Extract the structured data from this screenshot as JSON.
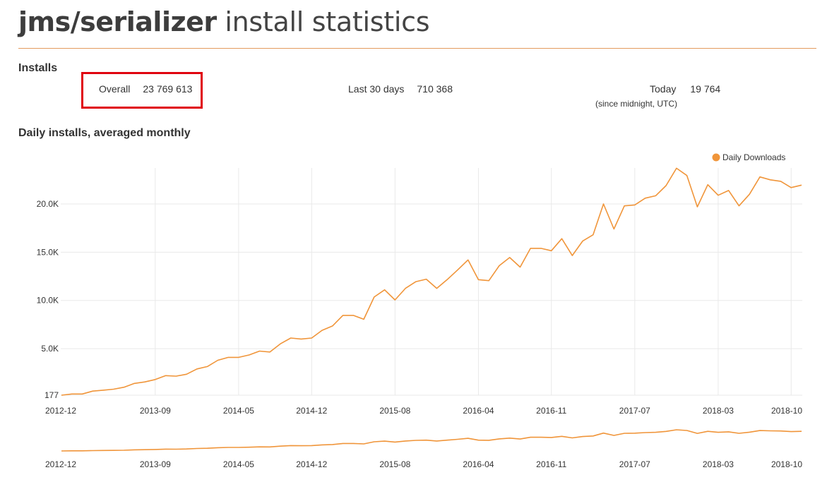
{
  "header": {
    "package": "jms/serializer",
    "title_rest": " install statistics"
  },
  "installs": {
    "heading": "Installs",
    "overall": {
      "label": "Overall",
      "value": "23 769 613"
    },
    "last30": {
      "label": "Last 30 days",
      "value": "710 368"
    },
    "today": {
      "label": "Today",
      "value": "19 764",
      "note": "(since midnight, UTC)"
    }
  },
  "chart_section": {
    "heading": "Daily installs, averaged monthly"
  },
  "colors": {
    "series": "#f0953a",
    "highlight_box": "#e0040f",
    "rule": "#e39a5e"
  },
  "chart_data": {
    "type": "line",
    "legend": "top-right",
    "grid": true,
    "ylim": [
      177,
      24500
    ],
    "y_ticks": [
      177,
      5000,
      10000,
      15000,
      20000
    ],
    "y_tick_labels": [
      "177",
      "5.0K",
      "10.0K",
      "15.0K",
      "20.0K"
    ],
    "x_tick_labels": [
      "2012-12",
      "2013-09",
      "2014-05",
      "2014-12",
      "2015-08",
      "2016-04",
      "2016-11",
      "2017-07",
      "2018-03",
      "2018-10"
    ],
    "x_tick_indices": [
      0,
      9,
      17,
      24,
      32,
      40,
      47,
      55,
      63,
      70
    ],
    "series": [
      {
        "name": "Daily Downloads",
        "values": [
          177,
          300,
          300,
          600,
          700,
          800,
          1000,
          1400,
          1550,
          1800,
          2200,
          2150,
          2350,
          2900,
          3150,
          3800,
          4100,
          4100,
          4350,
          4750,
          4650,
          5500,
          6100,
          6000,
          6100,
          6900,
          7350,
          8450,
          8450,
          8050,
          10350,
          11100,
          10050,
          11250,
          11950,
          12200,
          11250,
          12150,
          13150,
          14200,
          12150,
          12050,
          13600,
          14450,
          13450,
          15400,
          15400,
          15150,
          16400,
          14650,
          16150,
          16800,
          20000,
          17400,
          19800,
          19900,
          20600,
          20850,
          21900,
          23700,
          22950,
          19700,
          22000,
          20900,
          21400,
          19800,
          21000,
          22800,
          22500,
          22350,
          21700,
          21950
        ]
      }
    ]
  }
}
